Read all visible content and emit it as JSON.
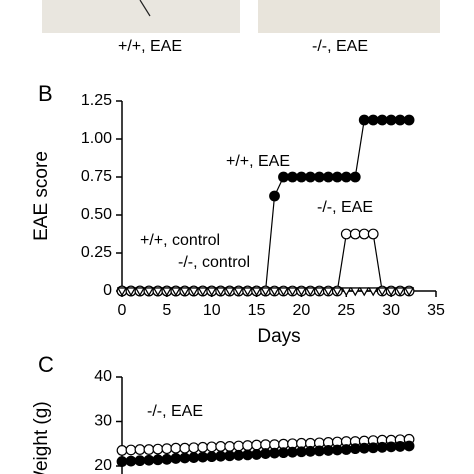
{
  "figure": {
    "image_captions": [
      "+/+, EAE",
      "-/-, EAE"
    ]
  },
  "chart_data": [
    {
      "type": "line",
      "label": "B",
      "xlabel": "Days",
      "ylabel": "EAE score",
      "x": [
        0,
        1,
        2,
        3,
        4,
        5,
        6,
        7,
        8,
        9,
        10,
        11,
        12,
        13,
        14,
        15,
        16,
        17,
        18,
        19,
        20,
        21,
        22,
        23,
        24,
        25,
        26,
        27,
        28,
        29,
        30,
        31,
        32
      ],
      "xlim": [
        0,
        35
      ],
      "xticks": [
        0,
        5,
        10,
        15,
        20,
        25,
        30,
        35
      ],
      "ylim": [
        0,
        1.25
      ],
      "yticks": [
        0,
        {
          "value": 0.25,
          "label": "0.25"
        },
        {
          "value": 0.5,
          "label": "0.50"
        },
        {
          "value": 0.75,
          "label": "0.75"
        },
        {
          "value": 1,
          "label": "1.00"
        },
        {
          "value": 1.25,
          "label": "1.25"
        }
      ],
      "series": [
        {
          "name": "+/+, EAE",
          "color": "#000000",
          "marker": "circle",
          "filled": true,
          "values": [
            0,
            0,
            0,
            0,
            0,
            0,
            0,
            0,
            0,
            0,
            0,
            0,
            0,
            0,
            0,
            0,
            0,
            0.625,
            0.75,
            0.75,
            0.75,
            0.75,
            0.75,
            0.75,
            0.75,
            0.75,
            0.75,
            1.125,
            1.125,
            1.125,
            1.125,
            1.125,
            1.125
          ]
        },
        {
          "name": "-/-, EAE",
          "color": "#000000",
          "marker": "circle",
          "filled": false,
          "values": [
            0,
            0,
            0,
            0,
            0,
            0,
            0,
            0,
            0,
            0,
            0,
            0,
            0,
            0,
            0,
            0,
            0,
            0,
            0,
            0,
            0,
            0,
            0,
            0,
            0,
            0.375,
            0.375,
            0.375,
            0.375,
            0,
            0,
            0,
            0
          ]
        },
        {
          "name": "+/+, control",
          "color": "#000000",
          "marker": "triangle",
          "filled": true,
          "values": [
            0,
            0,
            0,
            0,
            0,
            0,
            0,
            0,
            0,
            0,
            0,
            0,
            0,
            0,
            0,
            0,
            0,
            0,
            0,
            0,
            0,
            0,
            0,
            0,
            0,
            0,
            0,
            0,
            0,
            0,
            0,
            0,
            0
          ]
        },
        {
          "name": "-/-, control",
          "color": "#000000",
          "marker": "triangle",
          "filled": false,
          "values": [
            0,
            0,
            0,
            0,
            0,
            0,
            0,
            0,
            0,
            0,
            0,
            0,
            0,
            0,
            0,
            0,
            0,
            0,
            0,
            0,
            0,
            0,
            0,
            0,
            0,
            0,
            0,
            0,
            0,
            0,
            0,
            0,
            0
          ]
        }
      ]
    },
    {
      "type": "line",
      "label": "C",
      "ylabel": "Weight (g)",
      "x": [
        0,
        1,
        2,
        3,
        4,
        5,
        6,
        7,
        8,
        9,
        10,
        11,
        12,
        13,
        14,
        15,
        16,
        17,
        18,
        19,
        20,
        21,
        22,
        23,
        24,
        25,
        26,
        27,
        28,
        29,
        30,
        31,
        32
      ],
      "xlim": [
        0,
        35
      ],
      "ylim": [
        15,
        40
      ],
      "yticks": [
        20,
        30,
        40
      ],
      "series": [
        {
          "name": "-/-, EAE",
          "color": "#000000",
          "marker": "circle",
          "filled": false,
          "values": [
            23.5,
            23.6,
            23.7,
            23.7,
            23.8,
            23.9,
            24.0,
            24.0,
            24.1,
            24.2,
            24.3,
            24.4,
            24.4,
            24.5,
            24.6,
            24.7,
            24.8,
            24.8,
            24.9,
            25.0,
            25.1,
            25.1,
            25.2,
            25.3,
            25.4,
            25.5,
            25.5,
            25.6,
            25.7,
            25.8,
            25.8,
            25.9,
            26.0
          ]
        },
        {
          "color": "#000000",
          "marker": "circle",
          "filled": true,
          "values": [
            21.0,
            21.1,
            21.2,
            21.3,
            21.4,
            21.5,
            21.7,
            21.8,
            21.9,
            22.0,
            22.1,
            22.2,
            22.3,
            22.4,
            22.5,
            22.6,
            22.8,
            22.9,
            23.0,
            23.1,
            23.2,
            23.3,
            23.4,
            23.5,
            23.6,
            23.7,
            23.9,
            24.0,
            24.1,
            24.2,
            24.3,
            24.4,
            24.5
          ]
        }
      ]
    }
  ]
}
